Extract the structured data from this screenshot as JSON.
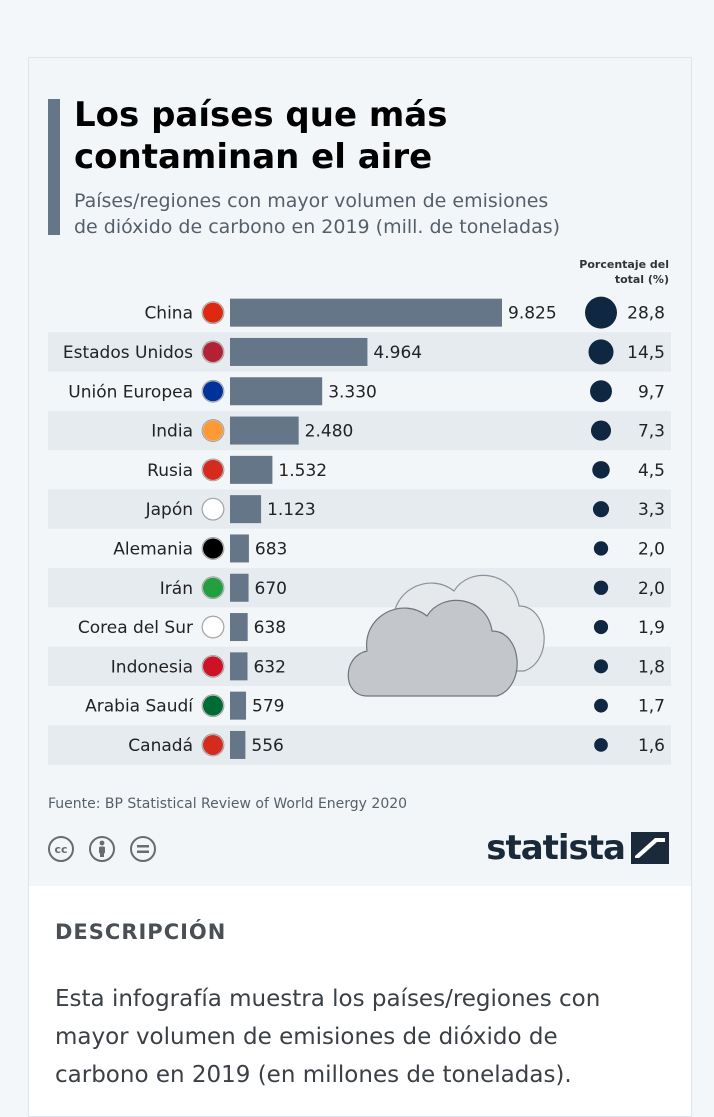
{
  "description": {
    "heading": "DESCRIPCIÓN",
    "text": "Esta infografía muestra los países/regiones con mayor volumen de emisiones de dióxido de carbono en 2019 (en millones de toneladas)."
  },
  "source": "Fuente: BP Statistical Review of World Energy 2020",
  "brand": "statista",
  "colors": {
    "bar": "#647687",
    "bubble": "#0f2740",
    "row_stripe": "#e6ebf0"
  },
  "chart_data": {
    "type": "bar",
    "orientation": "horizontal",
    "title": "Los países que más\ncontaminan el aire",
    "subtitle": "Países/regiones con mayor volumen de emisiones\nde dióxido de carbono en 2019 (mill. de toneladas)",
    "percent_header": "Porcentaje del\ntotal (%)",
    "categories": [
      "China",
      "Estados Unidos",
      "Unión Europea",
      "India",
      "Rusia",
      "Japón",
      "Alemania",
      "Irán",
      "Corea del Sur",
      "Indonesia",
      "Arabia Saudí",
      "Canadá"
    ],
    "values": [
      9825,
      4964,
      3330,
      2480,
      1532,
      1123,
      683,
      670,
      638,
      632,
      579,
      556
    ],
    "value_labels": [
      "9.825",
      "4.964",
      "3.330",
      "2.480",
      "1.532",
      "1.123",
      "683",
      "670",
      "638",
      "632",
      "579",
      "556"
    ],
    "percent": [
      28.8,
      14.5,
      9.7,
      7.3,
      4.5,
      3.3,
      2.0,
      2.0,
      1.9,
      1.8,
      1.7,
      1.6
    ],
    "percent_labels": [
      "28,8",
      "14,5",
      "9,7",
      "7,3",
      "4,5",
      "3,3",
      "2,0",
      "2,0",
      "1,9",
      "1,8",
      "1,7",
      "1,6"
    ],
    "flags": [
      "china-flag-icon",
      "usa-flag-icon",
      "eu-flag-icon",
      "india-flag-icon",
      "russia-flag-icon",
      "japan-flag-icon",
      "germany-flag-icon",
      "iran-flag-icon",
      "south-korea-flag-icon",
      "indonesia-flag-icon",
      "saudi-arabia-flag-icon",
      "canada-flag-icon"
    ],
    "xlim": [
      0,
      9825
    ]
  }
}
